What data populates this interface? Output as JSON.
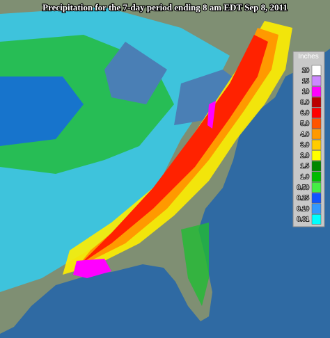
{
  "title": "Precipitation for the 7-day period ending 8 am EDT Sep 8, 2011",
  "legend": {
    "title": "Inches",
    "items": [
      {
        "label": "20",
        "color": "#ffffff"
      },
      {
        "label": "15",
        "color": "#cc88ff"
      },
      {
        "label": "10",
        "color": "#ff00ff"
      },
      {
        "label": "8.0",
        "color": "#bb0000"
      },
      {
        "label": "6.0",
        "color": "#ff0000"
      },
      {
        "label": "5.0",
        "color": "#ff5500"
      },
      {
        "label": "4.0",
        "color": "#ff9900"
      },
      {
        "label": "3.0",
        "color": "#ffcc00"
      },
      {
        "label": "2.0",
        "color": "#ffff00"
      },
      {
        "label": "1.5",
        "color": "#008800"
      },
      {
        "label": "1.0",
        "color": "#00bb00"
      },
      {
        "label": "0.50",
        "color": "#44ee44"
      },
      {
        "label": "0.25",
        "color": "#1155ff"
      },
      {
        "label": "0.10",
        "color": "#3399ff"
      },
      {
        "label": "0.01",
        "color": "#00ffff"
      }
    ]
  }
}
